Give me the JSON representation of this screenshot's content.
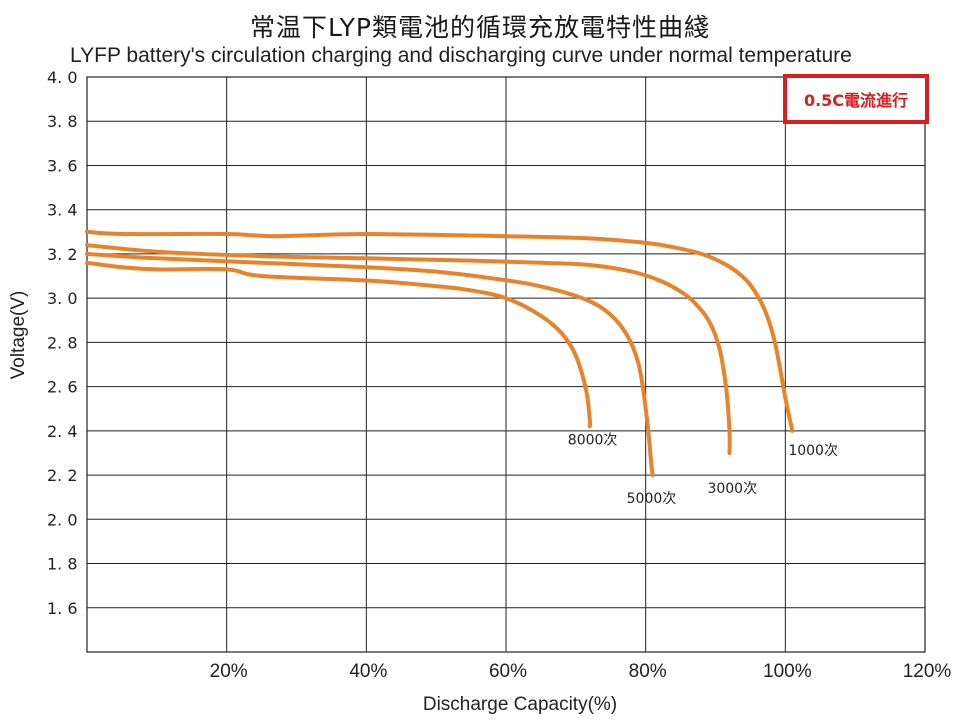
{
  "chart_data": {
    "type": "line",
    "title": "常温下LYP類電池的循環充放電特性曲綫",
    "subtitle": "LYFP battery's circulation charging and discharging curve under normal temperature",
    "xlabel": "Discharge Capacity(%)",
    "ylabel": "Voltage(V)",
    "xlim": [
      0,
      120
    ],
    "ylim": [
      1.4,
      4.0
    ],
    "x_ticks": [
      20,
      40,
      60,
      80,
      100,
      120
    ],
    "x_tick_labels": [
      "20%",
      "40%",
      "60%",
      "80%",
      "100%",
      "120%"
    ],
    "y_ticks": [
      1.6,
      1.8,
      2.0,
      2.2,
      2.4,
      2.6,
      2.8,
      3.0,
      3.2,
      3.4,
      3.6,
      3.8,
      4.0
    ],
    "y_tick_labels": [
      "1. 6",
      "1. 8",
      "2. 0",
      "2. 2",
      "2. 4",
      "2. 6",
      "2. 8",
      "3. 0",
      "3. 2",
      "3. 4",
      "3. 6",
      "3. 8",
      "4. 0"
    ],
    "grid": true,
    "annotation": "0.5C電流進行",
    "color": "#e8832a",
    "series": [
      {
        "name": "1000次",
        "x": [
          0,
          5,
          20,
          27,
          40,
          60,
          72,
          80,
          84,
          88,
          91,
          93,
          95,
          97,
          98.5,
          100,
          101
        ],
        "y": [
          3.3,
          3.29,
          3.29,
          3.28,
          3.29,
          3.28,
          3.27,
          3.25,
          3.23,
          3.2,
          3.16,
          3.12,
          3.06,
          2.95,
          2.8,
          2.55,
          2.4
        ]
      },
      {
        "name": "3000次",
        "x": [
          0,
          10,
          25,
          40,
          55,
          65,
          72,
          78,
          82,
          85,
          87,
          89,
          90.5,
          91.5,
          92,
          92
        ],
        "y": [
          3.24,
          3.21,
          3.19,
          3.18,
          3.17,
          3.16,
          3.15,
          3.12,
          3.08,
          3.03,
          2.98,
          2.9,
          2.78,
          2.6,
          2.4,
          2.3
        ]
      },
      {
        "name": "5000次",
        "x": [
          0,
          10,
          25,
          40,
          50,
          58,
          64,
          70,
          74,
          77,
          79,
          80.2,
          80.8,
          81
        ],
        "y": [
          3.2,
          3.18,
          3.16,
          3.14,
          3.12,
          3.09,
          3.06,
          3.01,
          2.95,
          2.85,
          2.7,
          2.45,
          2.25,
          2.2
        ]
      },
      {
        "name": "8000次",
        "x": [
          0,
          5,
          10,
          20,
          25,
          40,
          48,
          54,
          60,
          65,
          68,
          70,
          71.5,
          72,
          72
        ],
        "y": [
          3.16,
          3.14,
          3.13,
          3.13,
          3.1,
          3.08,
          3.06,
          3.04,
          3.0,
          2.92,
          2.84,
          2.74,
          2.58,
          2.45,
          2.42
        ]
      }
    ]
  }
}
